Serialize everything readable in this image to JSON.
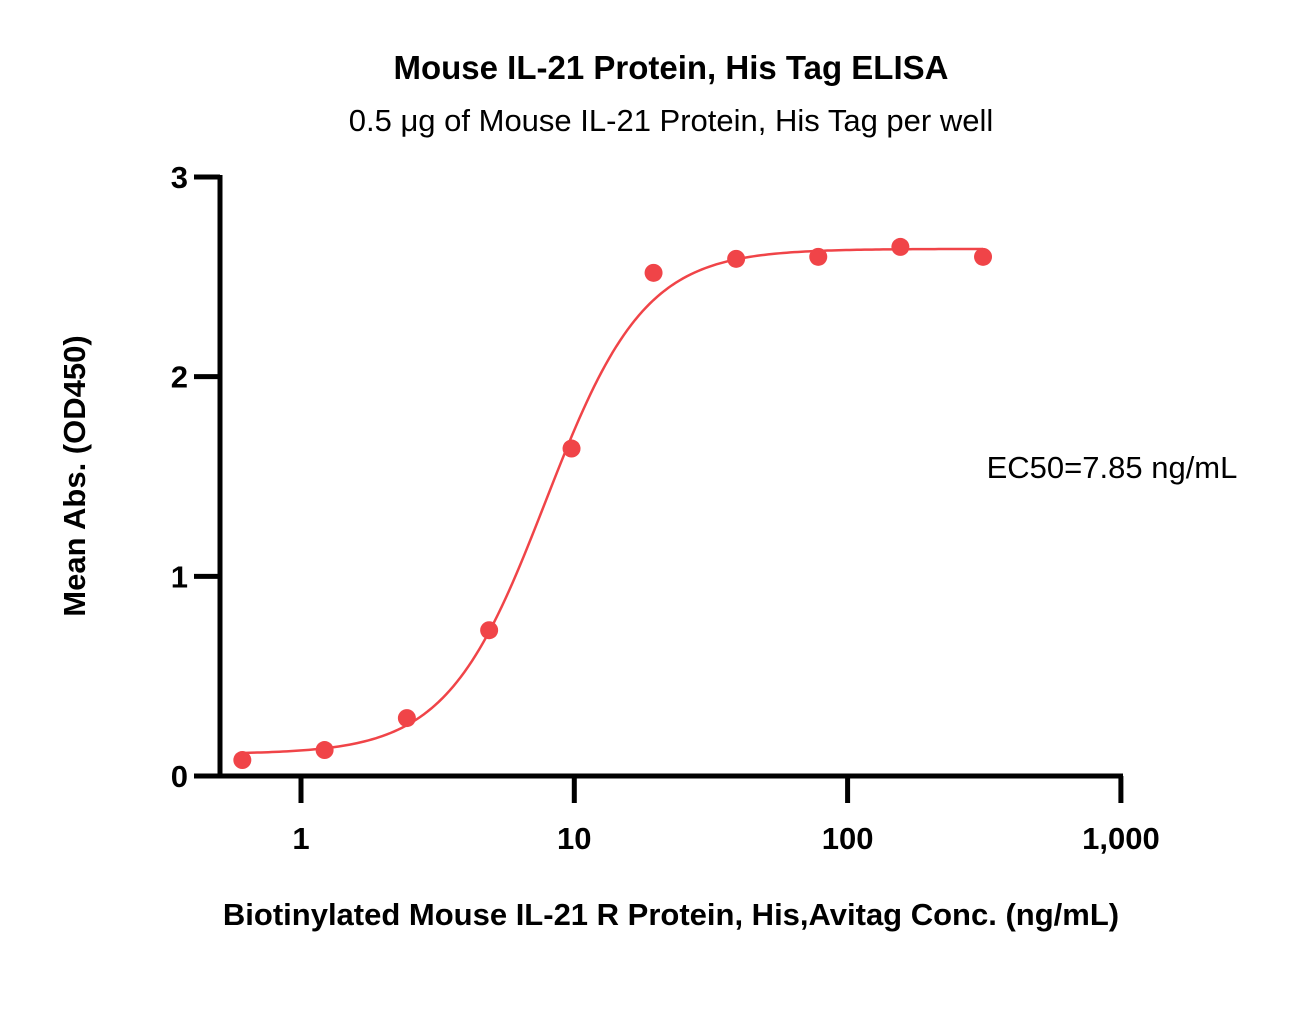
{
  "chart_data": {
    "type": "scatter",
    "title": "Mouse IL-21 Protein, His Tag ELISA",
    "subtitle": "0.5 μg of Mouse IL-21 Protein, His Tag per well",
    "xlabel": "Biotinylated Mouse IL-21 R Protein, His,Avitag Conc. (ng/mL)",
    "ylabel": "Mean Abs. (OD450)",
    "x_scale": "log",
    "xlim": [
      0.5,
      1000
    ],
    "ylim": [
      0,
      3
    ],
    "x_ticks": [
      1,
      10,
      100,
      1000
    ],
    "x_tick_labels": [
      "1",
      "10",
      "100",
      "1,000"
    ],
    "y_ticks": [
      0,
      1,
      2,
      3
    ],
    "y_tick_labels": [
      "0",
      "1",
      "2",
      "3"
    ],
    "grid": false,
    "color": "#f04448",
    "series": [
      {
        "x": [
          0.61,
          1.22,
          2.44,
          4.88,
          9.77,
          19.5,
          39.1,
          78.1,
          156,
          313
        ],
        "y": [
          0.08,
          0.13,
          0.29,
          0.73,
          1.64,
          2.52,
          2.59,
          2.6,
          2.65,
          2.6
        ]
      }
    ],
    "fit": {
      "model": "4PL",
      "bottom": 0.11,
      "top": 2.64,
      "ec50": 7.85,
      "hill": 2.4
    },
    "annotation": "EC50=7.85 ng/mL"
  }
}
